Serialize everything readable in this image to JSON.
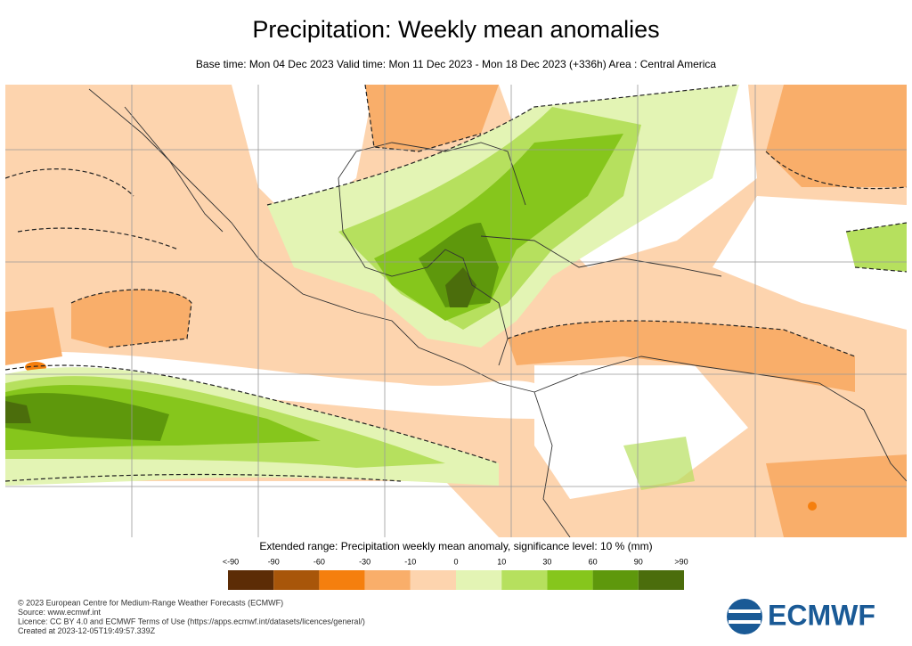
{
  "header": {
    "title": "Precipitation: Weekly mean anomalies",
    "subtitle": "Base time: Mon 04 Dec 2023 Valid time: Mon 11 Dec 2023 - Mon 18 Dec 2023 (+336h) Area : Central America"
  },
  "legend": {
    "title": "Extended range: Precipitation weekly mean anomaly, significance level: 10 % (mm)",
    "labels": [
      "<-90",
      "-90",
      "-60",
      "-30",
      "-10",
      "0",
      "10",
      "30",
      "60",
      "90",
      ">90"
    ],
    "colors": [
      "#5c2c06",
      "#a8560a",
      "#f57f0e",
      "#f9ae6a",
      "#fdd4ae",
      "#e3f4b4",
      "#b6e05e",
      "#86c61c",
      "#5e980c",
      "#4b6d0c"
    ]
  },
  "footer": {
    "lines": [
      "© 2023 European Centre for Medium-Range Weather Forecasts (ECMWF)",
      "Source: www.ecmwf.int",
      "Licence: CC BY 4.0 and ECMWF Terms of Use (https://apps.ecmwf.int/datasets/licences/general/)",
      "Created at 2023-12-05T19:49:57.339Z"
    ],
    "logo": "ECMWF"
  }
}
